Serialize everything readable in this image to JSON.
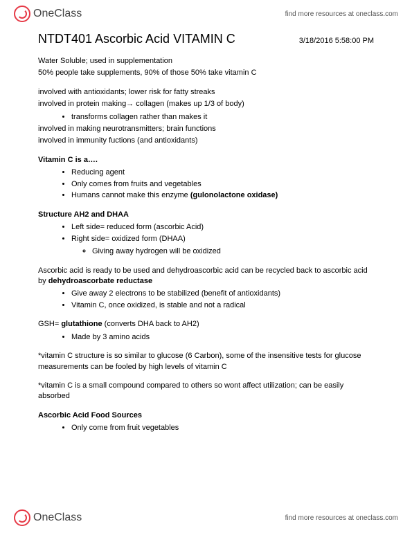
{
  "brand": "OneClass",
  "header_link": "find more resources at oneclass.com",
  "title": "NTDT401 Ascorbic Acid VITAMIN C",
  "timestamp": "3/18/2016 5:58:00 PM",
  "intro": {
    "p1": "Water Soluble; used in supplementation",
    "p2": "50% people take supplements, 90% of those 50% take vitamin C"
  },
  "involved": {
    "p1": "involved with antioxidants; lower risk for fatty streaks",
    "p2": "involved in protein making→ collagen (makes up 1/3 of body)",
    "b1": "transforms collagen rather than makes it",
    "p3": "involved in making neurotransmitters; brain functions",
    "p4": "involved in immunity fuctions (and antioxidants)"
  },
  "vitc_is": {
    "heading": "Vitamin C is a….",
    "b1": "Reducing agent",
    "b2": "Only comes from fruits and vegetables",
    "b3_pre": "Humans cannot make this enzyme ",
    "b3_bold": "(gulonolactone oxidase)"
  },
  "structure": {
    "heading": "Structure AH2 and DHAA",
    "b1": "Left side= reduced form (ascorbic Acid)",
    "b2": "Right side=  oxidized form (DHAA)",
    "sub1": "Giving away hydrogen will be oxidized"
  },
  "recycle": {
    "p1_pre": "Ascorbic acid is ready to be used and dehydroascorbic acid can be recycled back to ascorbic acid by ",
    "p1_bold": "dehydroascorbate reductase",
    "b1": "Give away 2 electrons to be stabilized (benefit of antioxidants)",
    "b2": "Vitamin C, once oxidized, is stable and not a radical"
  },
  "gsh": {
    "pre": "GSH= ",
    "bold": "glutathione",
    "post": " (converts DHA back to AH2)",
    "b1": "Made by 3 amino acids"
  },
  "note1": "*vitamin C structure is so similar to glucose (6 Carbon), some of the insensitive tests for glucose measurements can be fooled by high levels of vitamin C",
  "note2": "*vitamin C is a small compound compared to others so wont affect utilization; can be easily absorbed",
  "food": {
    "heading": "Ascorbic Acid Food Sources",
    "b1": "Only come from fruit vegetables"
  }
}
